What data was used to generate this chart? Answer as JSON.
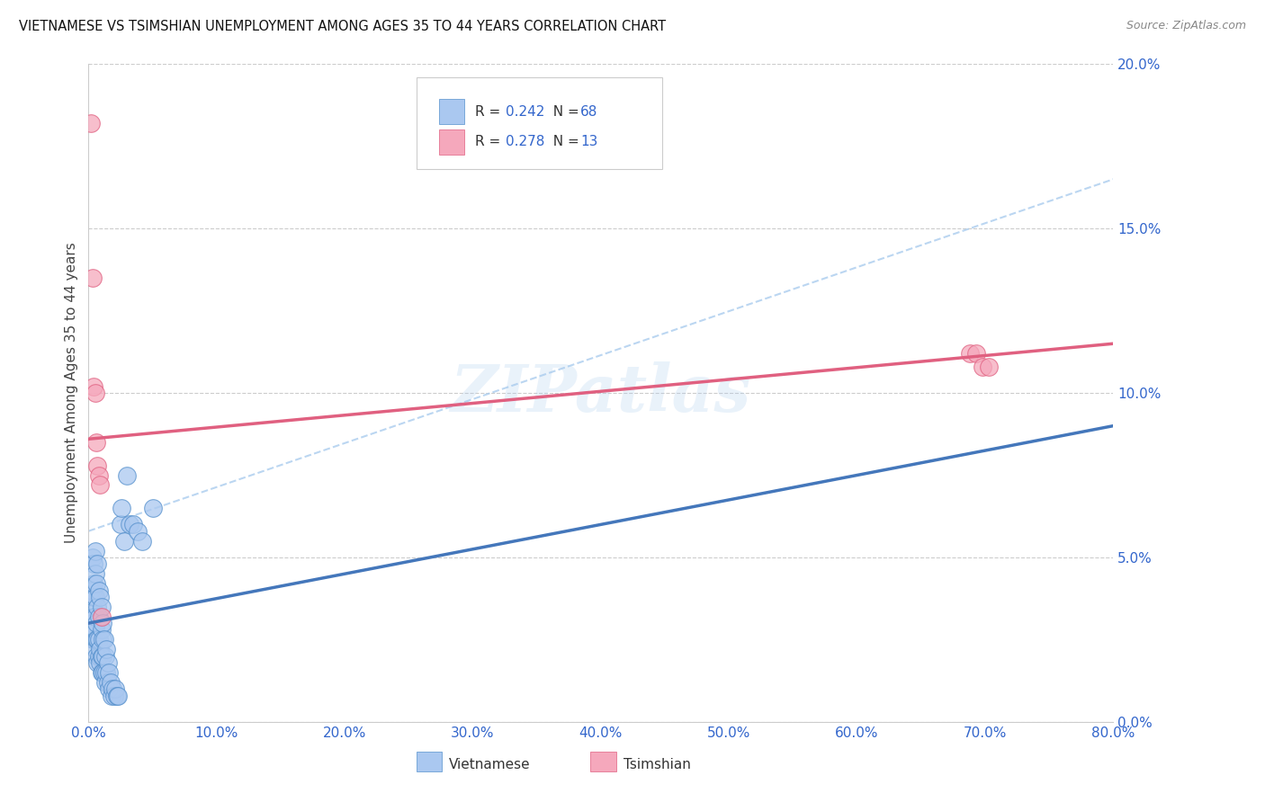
{
  "title": "VIETNAMESE VS TSIMSHIAN UNEMPLOYMENT AMONG AGES 35 TO 44 YEARS CORRELATION CHART",
  "source": "Source: ZipAtlas.com",
  "ylabel": "Unemployment Among Ages 35 to 44 years",
  "xlim": [
    0.0,
    0.8
  ],
  "ylim": [
    0.0,
    0.2
  ],
  "xticks": [
    0.0,
    0.1,
    0.2,
    0.3,
    0.4,
    0.5,
    0.6,
    0.7,
    0.8
  ],
  "yticks": [
    0.0,
    0.05,
    0.1,
    0.15,
    0.2
  ],
  "r_vietnamese": 0.242,
  "n_vietnamese": 68,
  "r_tsimshian": 0.278,
  "n_tsimshian": 13,
  "vietnamese_color": "#aac8f0",
  "tsimshian_color": "#f5a8bc",
  "vietnamese_edge_color": "#5590cc",
  "tsimshian_edge_color": "#e06080",
  "vietnamese_line_color": "#4477bb",
  "tsimshian_line_color": "#e06080",
  "dashed_line_color": "#aaccee",
  "accent_color": "#3366cc",
  "watermark": "ZIPatlas",
  "viet_line_x0": 0.0,
  "viet_line_y0": 0.03,
  "viet_line_x1": 0.8,
  "viet_line_y1": 0.09,
  "tsim_line_x0": 0.0,
  "tsim_line_y0": 0.086,
  "tsim_line_x1": 0.8,
  "tsim_line_y1": 0.115,
  "dash_line_x0": 0.0,
  "dash_line_y0": 0.058,
  "dash_line_x1": 0.8,
  "dash_line_y1": 0.165,
  "vietnamese_x": [
    0.002,
    0.002,
    0.003,
    0.003,
    0.003,
    0.003,
    0.003,
    0.004,
    0.004,
    0.004,
    0.004,
    0.004,
    0.004,
    0.005,
    0.005,
    0.005,
    0.005,
    0.005,
    0.005,
    0.006,
    0.006,
    0.006,
    0.006,
    0.007,
    0.007,
    0.007,
    0.007,
    0.008,
    0.008,
    0.008,
    0.008,
    0.009,
    0.009,
    0.009,
    0.01,
    0.01,
    0.01,
    0.01,
    0.011,
    0.011,
    0.011,
    0.011,
    0.012,
    0.012,
    0.013,
    0.013,
    0.014,
    0.014,
    0.015,
    0.015,
    0.016,
    0.016,
    0.017,
    0.018,
    0.019,
    0.02,
    0.021,
    0.022,
    0.023,
    0.025,
    0.026,
    0.028,
    0.03,
    0.032,
    0.035,
    0.038,
    0.042,
    0.05
  ],
  "vietnamese_y": [
    0.03,
    0.04,
    0.025,
    0.03,
    0.035,
    0.04,
    0.05,
    0.025,
    0.028,
    0.032,
    0.038,
    0.042,
    0.048,
    0.022,
    0.028,
    0.032,
    0.038,
    0.045,
    0.052,
    0.02,
    0.025,
    0.03,
    0.042,
    0.018,
    0.025,
    0.035,
    0.048,
    0.02,
    0.025,
    0.032,
    0.04,
    0.018,
    0.022,
    0.038,
    0.015,
    0.02,
    0.028,
    0.035,
    0.015,
    0.02,
    0.025,
    0.03,
    0.015,
    0.025,
    0.012,
    0.02,
    0.015,
    0.022,
    0.012,
    0.018,
    0.01,
    0.015,
    0.012,
    0.008,
    0.01,
    0.008,
    0.01,
    0.008,
    0.008,
    0.06,
    0.065,
    0.055,
    0.075,
    0.06,
    0.06,
    0.058,
    0.055,
    0.065
  ],
  "tsimshian_x": [
    0.002,
    0.003,
    0.004,
    0.005,
    0.006,
    0.007,
    0.008,
    0.009,
    0.01,
    0.688,
    0.693,
    0.698,
    0.703
  ],
  "tsimshian_y": [
    0.182,
    0.135,
    0.102,
    0.1,
    0.085,
    0.078,
    0.075,
    0.072,
    0.032,
    0.112,
    0.112,
    0.108,
    0.108
  ]
}
